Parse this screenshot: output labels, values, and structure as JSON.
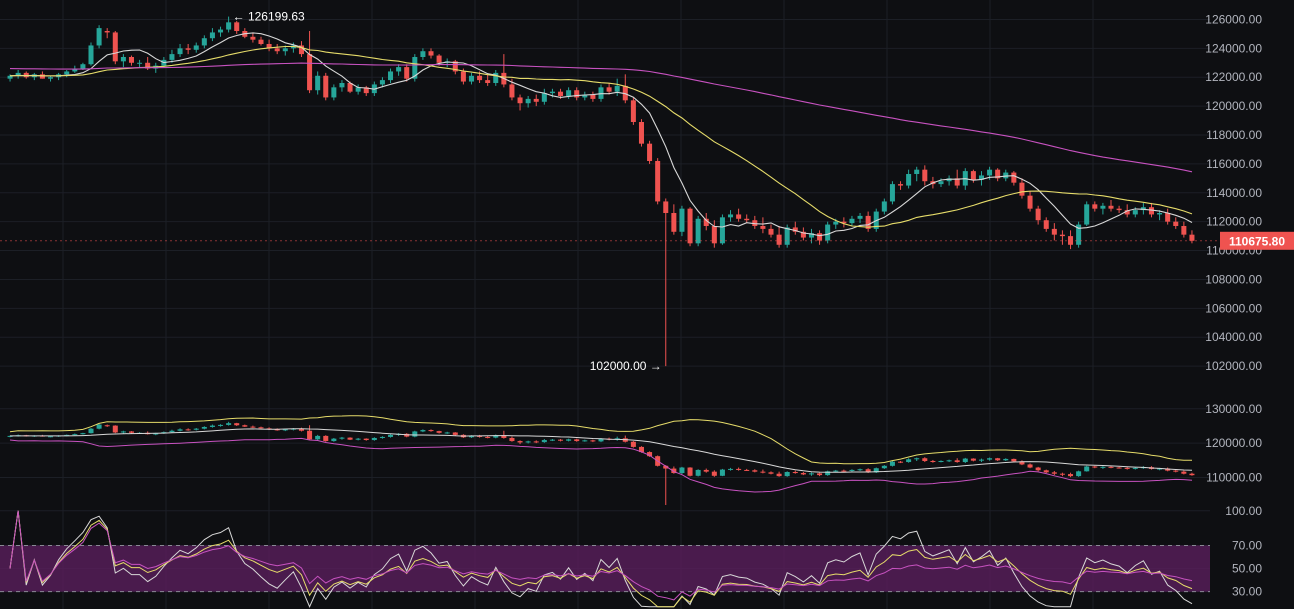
{
  "colors": {
    "background": "#0e0f12",
    "grid": "#1c1f26",
    "bull": "#26a69a",
    "bear": "#ef5350",
    "ma_fast": "#d8d8d8",
    "ma_mid": "#e6dc6a",
    "ma_slow": "#c752c0",
    "price_tag": "#ef5350",
    "axis_text": "#b2b5be",
    "rsi_band": "#5a1e5c"
  },
  "chart_data": [
    {
      "type": "candlestick",
      "panel": "price",
      "ylim": [
        100000,
        127000
      ],
      "y_ticks": [
        "126000.00",
        "124000.00",
        "122000.00",
        "120000.00",
        "118000.00",
        "116000.00",
        "114000.00",
        "112000.00",
        "110000.00",
        "108000.00",
        "106000.00",
        "104000.00",
        "102000.00"
      ],
      "last_price": "110675.80",
      "annotations": {
        "high": "126199.63",
        "low": "102000.00"
      },
      "series": [
        {
          "kind": "ohlc",
          "candles": [
            [
              121900,
              122200,
              121700,
              122100
            ],
            [
              122100,
              122500,
              121900,
              122300
            ],
            [
              122300,
              122400,
              121900,
              122000
            ],
            [
              122000,
              122300,
              121800,
              122200
            ],
            [
              122200,
              122400,
              121900,
              121900
            ],
            [
              121900,
              122100,
              121700,
              122000
            ],
            [
              122000,
              122300,
              121800,
              122200
            ],
            [
              122200,
              122500,
              122000,
              122400
            ],
            [
              122400,
              122800,
              122300,
              122600
            ],
            [
              122600,
              123000,
              122500,
              122900
            ],
            [
              122900,
              124400,
              122800,
              124200
            ],
            [
              124200,
              125600,
              124000,
              125400
            ],
            [
              125200,
              125400,
              124700,
              125100
            ],
            [
              125100,
              125200,
              122900,
              123100
            ],
            [
              123100,
              123600,
              122700,
              123400
            ],
            [
              123400,
              123500,
              122800,
              123000
            ],
            [
              123000,
              123200,
              122700,
              123000
            ],
            [
              123000,
              123400,
              122500,
              122600
            ],
            [
              122600,
              123000,
              122300,
              122800
            ],
            [
              122800,
              123400,
              122700,
              123200
            ],
            [
              123200,
              123900,
              123000,
              123600
            ],
            [
              123600,
              124300,
              123400,
              124000
            ],
            [
              124000,
              124300,
              123600,
              123900
            ],
            [
              123900,
              124400,
              123700,
              124200
            ],
            [
              124200,
              124900,
              124000,
              124700
            ],
            [
              124700,
              125400,
              124500,
              125100
            ],
            [
              125100,
              125500,
              124800,
              125300
            ],
            [
              125300,
              126199,
              125100,
              125800
            ],
            [
              125800,
              125900,
              125000,
              125200
            ],
            [
              125200,
              125400,
              124700,
              124800
            ],
            [
              124800,
              125100,
              124400,
              124600
            ],
            [
              124600,
              124800,
              124200,
              124300
            ],
            [
              124300,
              124600,
              123800,
              124000
            ],
            [
              124000,
              124300,
              123600,
              123800
            ],
            [
              123800,
              124200,
              123500,
              124000
            ],
            [
              124000,
              124400,
              123700,
              124200
            ],
            [
              124200,
              124500,
              123400,
              123600
            ],
            [
              123600,
              125200,
              120900,
              121100
            ],
            [
              121100,
              122400,
              120800,
              122100
            ],
            [
              122100,
              122300,
              120400,
              120600
            ],
            [
              120600,
              121500,
              120400,
              121300
            ],
            [
              121300,
              121800,
              121000,
              121600
            ],
            [
              121600,
              121700,
              120900,
              121000
            ],
            [
              121000,
              121500,
              120800,
              121300
            ],
            [
              121300,
              121400,
              120700,
              120900
            ],
            [
              120900,
              121700,
              120700,
              121500
            ],
            [
              121500,
              122000,
              121300,
              121800
            ],
            [
              121800,
              122600,
              121600,
              122400
            ],
            [
              122400,
              122900,
              122100,
              122700
            ],
            [
              122700,
              122900,
              121700,
              121900
            ],
            [
              121900,
              123600,
              121700,
              123400
            ],
            [
              123400,
              124000,
              123200,
              123800
            ],
            [
              123800,
              124000,
              123300,
              123500
            ],
            [
              123500,
              123600,
              122800,
              123000
            ],
            [
              123000,
              123300,
              122700,
              123100
            ],
            [
              123100,
              123200,
              122200,
              122400
            ],
            [
              122400,
              122600,
              121500,
              121700
            ],
            [
              121700,
              122300,
              121500,
              122100
            ],
            [
              122100,
              122400,
              121600,
              121800
            ],
            [
              121800,
              122200,
              121400,
              121600
            ],
            [
              121600,
              122500,
              121400,
              122300
            ],
            [
              122300,
              123600,
              121300,
              121500
            ],
            [
              121500,
              121900,
              120400,
              120600
            ],
            [
              120600,
              120800,
              119700,
              120200
            ],
            [
              120200,
              120700,
              119900,
              120500
            ],
            [
              120500,
              120800,
              120000,
              120300
            ],
            [
              120300,
              121200,
              120100,
              120900
            ],
            [
              120900,
              121200,
              120600,
              121000
            ],
            [
              121000,
              121200,
              120500,
              120700
            ],
            [
              120700,
              121300,
              120500,
              121100
            ],
            [
              121100,
              121300,
              120400,
              120600
            ],
            [
              120600,
              121000,
              120400,
              120800
            ],
            [
              120800,
              121000,
              120300,
              120500
            ],
            [
              120500,
              121500,
              120300,
              121300
            ],
            [
              121300,
              121600,
              120800,
              121000
            ],
            [
              121000,
              121900,
              120700,
              121400
            ],
            [
              121400,
              122200,
              120200,
              120400
            ],
            [
              120400,
              120600,
              118700,
              118900
            ],
            [
              118900,
              119100,
              117200,
              117400
            ],
            [
              117400,
              117600,
              116000,
              116200
            ],
            [
              116200,
              116400,
              113200,
              113400
            ],
            [
              113400,
              113600,
              102000,
              112600
            ],
            [
              112600,
              113200,
              111100,
              111300
            ],
            [
              111300,
              113100,
              111000,
              112900
            ],
            [
              112900,
              113000,
              110300,
              110500
            ],
            [
              110500,
              112400,
              110300,
              112200
            ],
            [
              112200,
              112600,
              111400,
              111700
            ],
            [
              111700,
              112100,
              110200,
              110500
            ],
            [
              110500,
              112500,
              110400,
              112300
            ],
            [
              112300,
              112800,
              112000,
              112500
            ],
            [
              112500,
              112900,
              112000,
              112200
            ],
            [
              112200,
              112500,
              111900,
              112100
            ],
            [
              112100,
              112400,
              111500,
              111700
            ],
            [
              111700,
              112300,
              111200,
              111500
            ],
            [
              111500,
              111800,
              110900,
              111100
            ],
            [
              111100,
              111700,
              110200,
              110400
            ],
            [
              110400,
              111800,
              110200,
              111600
            ],
            [
              111600,
              112000,
              111100,
              111300
            ],
            [
              111300,
              111600,
              110700,
              110900
            ],
            [
              110900,
              111500,
              110500,
              111200
            ],
            [
              111200,
              111400,
              110400,
              110700
            ],
            [
              110700,
              112000,
              110500,
              111800
            ],
            [
              111800,
              112200,
              111500,
              112000
            ],
            [
              112000,
              112300,
              111600,
              111900
            ],
            [
              111900,
              112400,
              111700,
              112200
            ],
            [
              112200,
              112600,
              111900,
              112400
            ],
            [
              112400,
              112700,
              111300,
              111500
            ],
            [
              111500,
              112900,
              111300,
              112700
            ],
            [
              112700,
              113600,
              112500,
              113400
            ],
            [
              113400,
              114800,
              113200,
              114600
            ],
            [
              114600,
              114800,
              114200,
              114500
            ],
            [
              114500,
              115600,
              114300,
              115300
            ],
            [
              115300,
              115800,
              114800,
              115600
            ],
            [
              115600,
              115900,
              114500,
              114800
            ],
            [
              114800,
              115100,
              114300,
              114600
            ],
            [
              114600,
              115000,
              114400,
              114800
            ],
            [
              114800,
              115200,
              114500,
              115000
            ],
            [
              115000,
              115600,
              114300,
              114500
            ],
            [
              114500,
              115700,
              114200,
              115500
            ],
            [
              115500,
              115600,
              114700,
              114900
            ],
            [
              114900,
              115500,
              114500,
              115200
            ],
            [
              115200,
              115800,
              114900,
              115600
            ],
            [
              115600,
              115700,
              114800,
              115000
            ],
            [
              115000,
              115600,
              114800,
              115400
            ],
            [
              115400,
              115500,
              114500,
              114700
            ],
            [
              114700,
              115000,
              113600,
              113800
            ],
            [
              113800,
              114100,
              112700,
              112900
            ],
            [
              112900,
              113100,
              111800,
              112100
            ],
            [
              112100,
              112300,
              111300,
              111500
            ],
            [
              111500,
              111900,
              110700,
              111100
            ],
            [
              111100,
              111400,
              110400,
              111000
            ],
            [
              111000,
              111400,
              110100,
              110400
            ],
            [
              110400,
              112000,
              110200,
              111800
            ],
            [
              111800,
              113400,
              111700,
              113200
            ],
            [
              113200,
              113400,
              112700,
              112900
            ],
            [
              112900,
              113300,
              112500,
              113100
            ],
            [
              113100,
              113500,
              112700,
              112900
            ],
            [
              112900,
              113100,
              112600,
              112800
            ],
            [
              112800,
              113200,
              112300,
              112500
            ],
            [
              112500,
              113000,
              112300,
              112800
            ],
            [
              112800,
              113300,
              112500,
              113000
            ],
            [
              113000,
              113300,
              112300,
              112500
            ],
            [
              112500,
              112800,
              112100,
              112600
            ],
            [
              112600,
              112900,
              111800,
              112000
            ],
            [
              112000,
              112300,
              111500,
              111700
            ],
            [
              111700,
              112000,
              110900,
              111100
            ],
            [
              111100,
              111400,
              110500,
              110676
            ]
          ]
        },
        {
          "name": "",
          "kind": "ma",
          "color_key": "ma_fast",
          "period": 7
        },
        {
          "name": "",
          "kind": "ma",
          "color_key": "ma_mid",
          "period": 25
        },
        {
          "name": "",
          "kind": "ma",
          "color_key": "ma_slow",
          "period": 99,
          "seed": 122600
        }
      ]
    },
    {
      "type": "candlestick",
      "panel": "bollinger",
      "ylim": [
        102000,
        134000
      ],
      "y_ticks": [
        "130000.00",
        "120000.00",
        "110000.00"
      ],
      "series": [
        {
          "name": "",
          "kind": "upper_band",
          "color_key": "ma_mid"
        },
        {
          "name": "",
          "kind": "mid_band",
          "color_key": "ma_fast"
        },
        {
          "name": "",
          "kind": "lower_band",
          "color_key": "ma_slow"
        }
      ]
    },
    {
      "type": "line",
      "panel": "rsi",
      "ylim": [
        15,
        105
      ],
      "y_ticks": [
        "100.00",
        "70.00",
        "50.00",
        "30.00"
      ],
      "band": [
        30,
        70
      ],
      "series": [
        {
          "name": "",
          "color_key": "ma_fast",
          "period": 6
        },
        {
          "name": "",
          "color_key": "ma_mid",
          "period": 12
        },
        {
          "name": "",
          "color_key": "ma_slow",
          "period": 24
        }
      ]
    }
  ]
}
